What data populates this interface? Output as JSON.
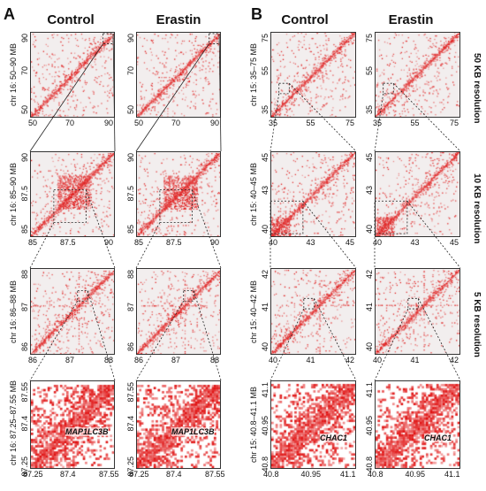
{
  "panels": {
    "A": {
      "letter": "A",
      "col1": "Control",
      "col2": "Erastin"
    },
    "B": {
      "letter": "B",
      "col1": "Control",
      "col2": "Erastin"
    }
  },
  "resolutions": [
    "50 KB resolution",
    "10 KB resolution",
    "5 KB resolution"
  ],
  "A": {
    "rows": [
      {
        "ylabel": "chr 16: 50–90 MB",
        "yticks": [
          "90",
          "70",
          "50"
        ],
        "xticks": [
          "50",
          "70",
          "90"
        ]
      },
      {
        "ylabel": "chr 16: 85–90 MB",
        "yticks": [
          "90",
          "87.5",
          "85"
        ],
        "xticks": [
          "85",
          "87.5",
          "90"
        ]
      },
      {
        "ylabel": "chr 16: 86–88 MB",
        "yticks": [
          "88",
          "87",
          "86"
        ],
        "xticks": [
          "86",
          "87",
          "88"
        ]
      },
      {
        "ylabel": "chr 16: 87.25–87.55 MB",
        "yticks": [
          "87.55",
          "87.4",
          "87.25"
        ],
        "xticks": [
          "87.25",
          "87.4",
          "87.55"
        ]
      }
    ],
    "gene": "MAP1LC3B"
  },
  "B": {
    "rows": [
      {
        "ylabel": "chr 15: 35–75 MB",
        "yticks": [
          "75",
          "55",
          "35"
        ],
        "xticks": [
          "35",
          "55",
          "75"
        ]
      },
      {
        "ylabel": "chr 15: 40–45 MB",
        "yticks": [
          "45",
          "43",
          "40"
        ],
        "xticks": [
          "40",
          "43",
          "45"
        ]
      },
      {
        "ylabel": "chr 15: 40–42 MB",
        "yticks": [
          "42",
          "41",
          "40"
        ],
        "xticks": [
          "40",
          "41",
          "42"
        ]
      },
      {
        "ylabel": "chr 15: 40.8–41.1 MB",
        "yticks": [
          "41.1",
          "40.95",
          "40.8"
        ],
        "xticks": [
          "40.8",
          "40.95",
          "41.1"
        ]
      }
    ],
    "gene": "CHAC1"
  },
  "colors": {
    "contact": "#e01010",
    "background": "#f2eeee",
    "frame": "#333333"
  }
}
